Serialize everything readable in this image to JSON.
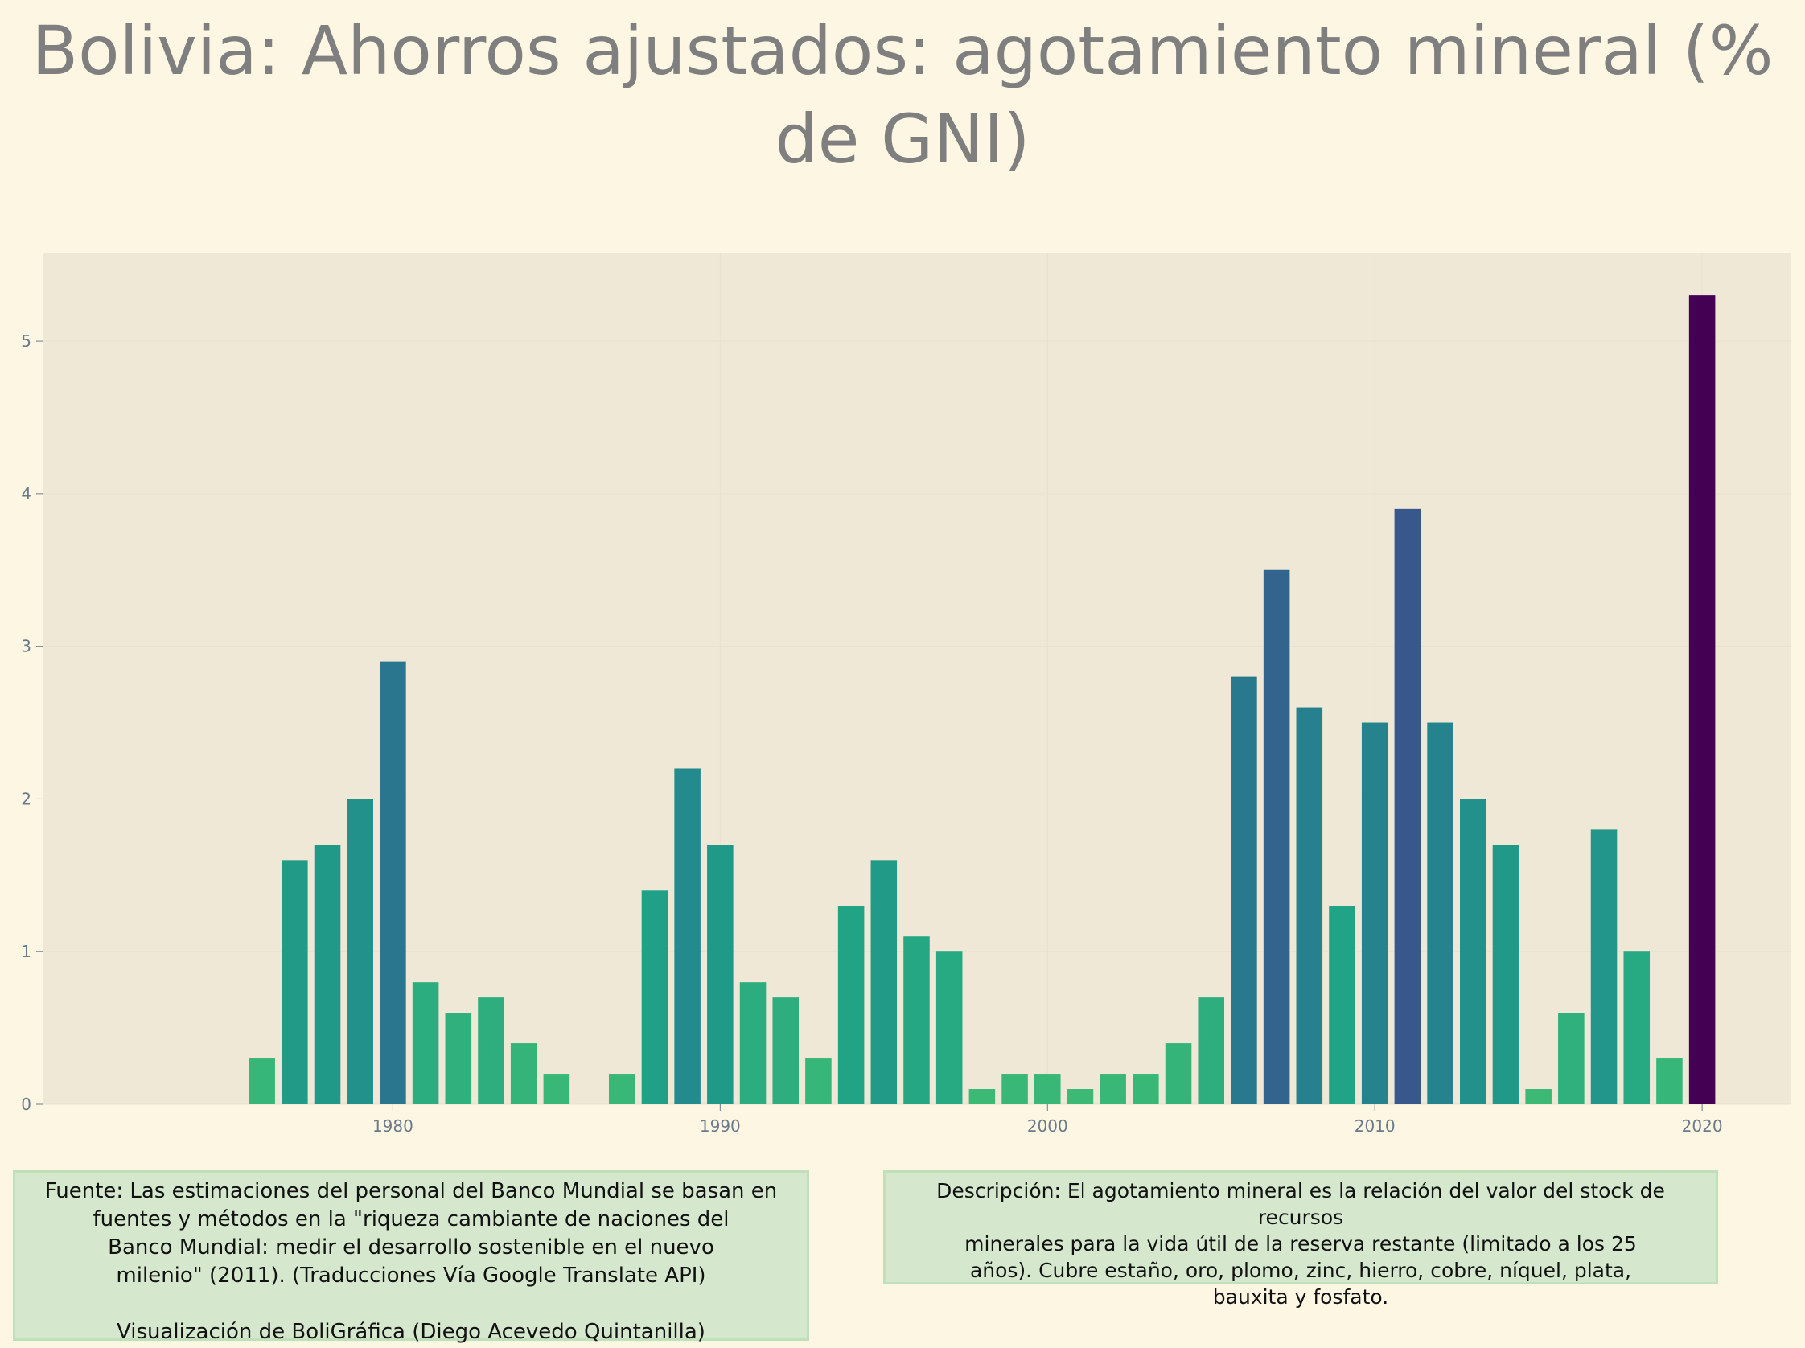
{
  "chart_data": {
    "type": "bar",
    "title": "Bolivia:  Ahorros ajustados: agotamiento mineral (% de GNI)",
    "title_lines": [
      "Bolivia:  Ahorros ajustados: agotamiento mineral (%",
      "de GNI)"
    ],
    "xlabel": "",
    "ylabel": "",
    "x": [
      1976,
      1977,
      1978,
      1979,
      1980,
      1981,
      1982,
      1983,
      1984,
      1985,
      1987,
      1988,
      1989,
      1990,
      1991,
      1992,
      1993,
      1994,
      1995,
      1996,
      1997,
      1998,
      1999,
      2000,
      2001,
      2002,
      2003,
      2004,
      2005,
      2006,
      2007,
      2008,
      2009,
      2010,
      2011,
      2012,
      2013,
      2014,
      2015,
      2016,
      2017,
      2018,
      2019,
      2020
    ],
    "values": [
      0.3,
      1.6,
      1.7,
      2.0,
      2.9,
      0.8,
      0.6,
      0.7,
      0.4,
      0.2,
      0.2,
      1.4,
      2.2,
      1.7,
      0.8,
      0.7,
      0.3,
      1.3,
      1.6,
      1.1,
      1.0,
      0.1,
      0.2,
      0.2,
      0.1,
      0.2,
      0.2,
      0.4,
      0.7,
      2.8,
      3.5,
      2.6,
      1.3,
      2.5,
      3.9,
      2.5,
      2.0,
      1.7,
      0.1,
      0.6,
      1.8,
      1.0,
      0.3,
      5.3
    ],
    "xlim": [
      1969.3,
      2022.7
    ],
    "ylim": [
      0,
      5.58
    ],
    "x_ticks": [
      1980,
      1990,
      2000,
      2010,
      2020
    ],
    "y_ticks": [
      0,
      1,
      2,
      3,
      4,
      5
    ],
    "colorscale": "viridis (reversed, mapped to value)",
    "grid": true,
    "legend": "none"
  },
  "colors": {
    "background": "#fdf6e3",
    "plot_background": "#efe8d6",
    "title": "#7f7f7f",
    "tick_labels": "#6b7a8a",
    "note_background": "#d5e8cd",
    "note_border": "#bfe0b8"
  },
  "notes": {
    "source": "Fuente: Las estimaciones del personal del Banco Mundial se basan en\nfuentes y métodos en la \"riqueza cambiante de naciones del\nBanco Mundial: medir el desarrollo sostenible en el nuevo\nmilenio\" (2011). (Traducciones Vía Google Translate API)\n\nVisualización de BoliGráfica (Diego Acevedo Quintanilla)",
    "description": "Descripción: El agotamiento mineral es la relación del valor del stock de recursos\nminerales para la vida útil de la reserva restante (limitado a los 25\naños). Cubre estaño, oro, plomo, zinc, hierro, cobre, níquel, plata,\nbauxita y fosfato."
  }
}
